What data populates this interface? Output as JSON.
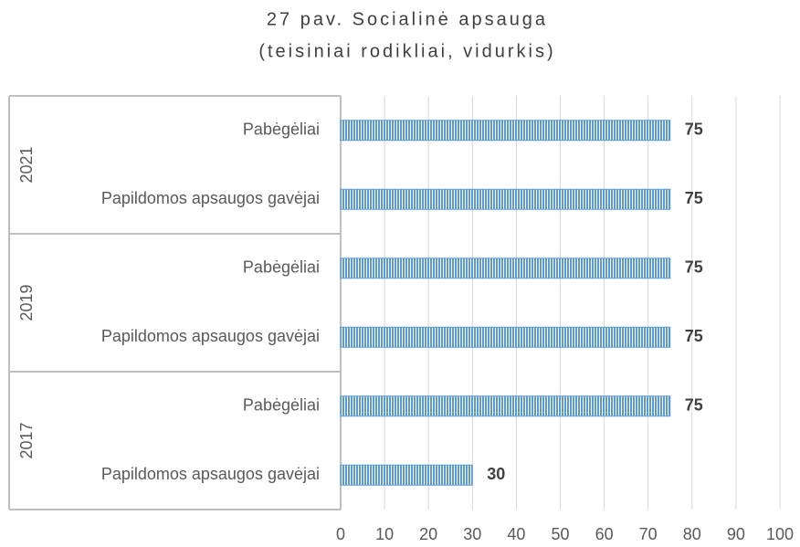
{
  "chart_data": {
    "type": "bar",
    "orientation": "horizontal",
    "title": "27 pav. Socialinė apsauga",
    "subtitle": "(teisiniai rodikliai, vidurkis)",
    "groups": [
      {
        "name": "2021",
        "categories": [
          "Pabėgėliai",
          "Papildomos apsaugos gavėjai"
        ],
        "values": [
          75,
          75
        ]
      },
      {
        "name": "2019",
        "categories": [
          "Pabėgėliai",
          "Papildomos apsaugos gavėjai"
        ],
        "values": [
          75,
          75
        ]
      },
      {
        "name": "2017",
        "categories": [
          "Pabėgėliai",
          "Papildomos apsaugos gavėjai"
        ],
        "values": [
          75,
          30
        ]
      }
    ],
    "color": "#5b9bd5",
    "xlim": [
      0,
      100
    ],
    "xticks": [
      0,
      10,
      20,
      30,
      40,
      50,
      60,
      70,
      80,
      90,
      100
    ],
    "grid": true
  }
}
